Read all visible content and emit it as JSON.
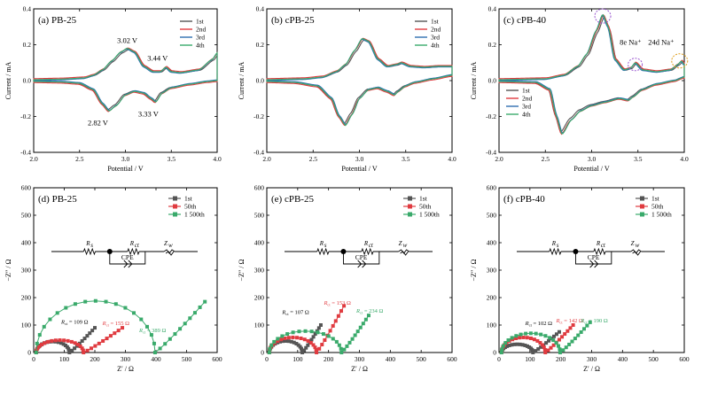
{
  "colors": {
    "c1": "#555555",
    "c2": "#e03b40",
    "c3": "#2f6fb0",
    "c4": "#3aaa6b",
    "purple": "#9b59d0",
    "orange": "#e0a020"
  },
  "chart_data": [
    {
      "type": "line",
      "panel": "a",
      "title": "(a) PB-25",
      "xlabel": "Potential / V",
      "ylabel": "Current / mA",
      "xlim": [
        2.0,
        4.0
      ],
      "ylim": [
        -0.4,
        0.4
      ],
      "xticks": [
        2.0,
        2.5,
        3.0,
        3.5,
        4.0
      ],
      "yticks": [
        -0.4,
        -0.2,
        0.0,
        0.2,
        0.4
      ],
      "series": [
        {
          "name": "1st",
          "color_key": "c1"
        },
        {
          "name": "2nd",
          "color_key": "c2"
        },
        {
          "name": "3rd",
          "color_key": "c3"
        },
        {
          "name": "4th",
          "color_key": "c4"
        }
      ],
      "anodic_peaks": [
        [
          2.0,
          0.005
        ],
        [
          2.3,
          0.008
        ],
        [
          2.55,
          0.015
        ],
        [
          2.65,
          0.03
        ],
        [
          2.75,
          0.06
        ],
        [
          2.85,
          0.11
        ],
        [
          2.95,
          0.16
        ],
        [
          3.02,
          0.18
        ],
        [
          3.1,
          0.16
        ],
        [
          3.2,
          0.08
        ],
        [
          3.3,
          0.05
        ],
        [
          3.38,
          0.05
        ],
        [
          3.44,
          0.075
        ],
        [
          3.5,
          0.05
        ],
        [
          3.6,
          0.045
        ],
        [
          3.8,
          0.06
        ],
        [
          3.95,
          0.12
        ],
        [
          4.0,
          0.155
        ]
      ],
      "cathodic_peaks": [
        [
          4.0,
          0.0
        ],
        [
          3.9,
          -0.005
        ],
        [
          3.7,
          -0.02
        ],
        [
          3.5,
          -0.04
        ],
        [
          3.4,
          -0.07
        ],
        [
          3.33,
          -0.12
        ],
        [
          3.28,
          -0.1
        ],
        [
          3.2,
          -0.07
        ],
        [
          3.1,
          -0.06
        ],
        [
          3.0,
          -0.08
        ],
        [
          2.9,
          -0.14
        ],
        [
          2.82,
          -0.17
        ],
        [
          2.75,
          -0.13
        ],
        [
          2.65,
          -0.05
        ],
        [
          2.5,
          -0.015
        ],
        [
          2.3,
          -0.008
        ],
        [
          2.0,
          -0.005
        ]
      ],
      "annotations": [
        {
          "text": "3.02 V",
          "x": 3.02,
          "y": 0.21
        },
        {
          "text": "3.44 V",
          "x": 3.35,
          "y": 0.11
        },
        {
          "text": "2.82 V",
          "x": 2.7,
          "y": -0.25
        },
        {
          "text": "3.33 V",
          "x": 3.25,
          "y": -0.2
        }
      ]
    },
    {
      "type": "line",
      "panel": "b",
      "title": "(b) cPB-25",
      "xlabel": "Potential / V",
      "ylabel": "Current / mA",
      "xlim": [
        2.0,
        4.0
      ],
      "ylim": [
        -0.4,
        0.4
      ],
      "xticks": [
        2.0,
        2.5,
        3.0,
        3.5,
        4.0
      ],
      "yticks": [
        -0.4,
        -0.2,
        0.0,
        0.2,
        0.4
      ],
      "series": [
        {
          "name": "1st",
          "color_key": "c1"
        },
        {
          "name": "2nd",
          "color_key": "c2"
        },
        {
          "name": "3rd",
          "color_key": "c3"
        },
        {
          "name": "4th",
          "color_key": "c4"
        }
      ],
      "anodic_peaks": [
        [
          2.0,
          0.005
        ],
        [
          2.4,
          0.01
        ],
        [
          2.6,
          0.02
        ],
        [
          2.75,
          0.05
        ],
        [
          2.85,
          0.09
        ],
        [
          2.95,
          0.17
        ],
        [
          3.03,
          0.235
        ],
        [
          3.1,
          0.22
        ],
        [
          3.2,
          0.12
        ],
        [
          3.3,
          0.08
        ],
        [
          3.4,
          0.09
        ],
        [
          3.45,
          0.1
        ],
        [
          3.55,
          0.08
        ],
        [
          3.7,
          0.075
        ],
        [
          3.85,
          0.08
        ],
        [
          4.0,
          0.08
        ]
      ],
      "cathodic_peaks": [
        [
          4.0,
          0.03
        ],
        [
          3.8,
          0.01
        ],
        [
          3.6,
          -0.01
        ],
        [
          3.5,
          -0.03
        ],
        [
          3.42,
          -0.06
        ],
        [
          3.38,
          -0.08
        ],
        [
          3.3,
          -0.06
        ],
        [
          3.2,
          -0.04
        ],
        [
          3.1,
          -0.05
        ],
        [
          3.0,
          -0.1
        ],
        [
          2.92,
          -0.19
        ],
        [
          2.85,
          -0.25
        ],
        [
          2.78,
          -0.2
        ],
        [
          2.7,
          -0.1
        ],
        [
          2.55,
          -0.03
        ],
        [
          2.3,
          -0.01
        ],
        [
          2.0,
          -0.005
        ]
      ],
      "annotations": []
    },
    {
      "type": "line",
      "panel": "c",
      "title": "(c) cPB-40",
      "xlabel": "Potential / V",
      "ylabel": "Current / mA",
      "xlim": [
        2.0,
        4.0
      ],
      "ylim": [
        -0.4,
        0.4
      ],
      "xticks": [
        2.0,
        2.5,
        3.0,
        3.5,
        4.0
      ],
      "yticks": [
        -0.4,
        -0.2,
        0.0,
        0.2,
        0.4
      ],
      "series": [
        {
          "name": "1st",
          "color_key": "c1"
        },
        {
          "name": "2nd",
          "color_key": "c2"
        },
        {
          "name": "3rd",
          "color_key": "c3"
        },
        {
          "name": "4th",
          "color_key": "c4"
        }
      ],
      "anodic_peaks": [
        [
          2.0,
          0.005
        ],
        [
          2.5,
          0.01
        ],
        [
          2.7,
          0.03
        ],
        [
          2.85,
          0.08
        ],
        [
          2.95,
          0.15
        ],
        [
          3.05,
          0.28
        ],
        [
          3.12,
          0.37
        ],
        [
          3.18,
          0.3
        ],
        [
          3.25,
          0.12
        ],
        [
          3.35,
          0.06
        ],
        [
          3.42,
          0.07
        ],
        [
          3.47,
          0.1
        ],
        [
          3.55,
          0.06
        ],
        [
          3.7,
          0.05
        ],
        [
          3.85,
          0.06
        ],
        [
          3.93,
          0.09
        ],
        [
          3.97,
          0.11
        ],
        [
          4.0,
          0.09
        ]
      ],
      "cathodic_peaks": [
        [
          4.0,
          0.02
        ],
        [
          3.9,
          0.0
        ],
        [
          3.7,
          -0.02
        ],
        [
          3.55,
          -0.05
        ],
        [
          3.45,
          -0.09
        ],
        [
          3.4,
          -0.11
        ],
        [
          3.3,
          -0.1
        ],
        [
          3.15,
          -0.12
        ],
        [
          3.0,
          -0.14
        ],
        [
          2.88,
          -0.17
        ],
        [
          2.78,
          -0.22
        ],
        [
          2.68,
          -0.3
        ],
        [
          2.62,
          -0.2
        ],
        [
          2.55,
          -0.05
        ],
        [
          2.4,
          -0.01
        ],
        [
          2.0,
          -0.005
        ]
      ],
      "annotations": [
        {
          "text": "8e Na⁺",
          "x": 3.42,
          "y": 0.2,
          "color_key": "purple"
        },
        {
          "text": "24d Na⁺",
          "x": 3.75,
          "y": 0.2,
          "color_key": "orange"
        }
      ],
      "legend": "bottom-left"
    },
    {
      "type": "scatter",
      "panel": "d",
      "title": "(d) PB-25",
      "xlabel": "Z′ / Ω",
      "ylabel": "−Z″ / Ω",
      "xlim": [
        0,
        600
      ],
      "ylim": [
        0,
        600
      ],
      "xticks": [
        0,
        100,
        200,
        300,
        400,
        500,
        600
      ],
      "yticks": [
        0,
        100,
        200,
        300,
        400,
        500,
        600
      ],
      "series": [
        {
          "name": "1st",
          "color_key": "c1",
          "Rct": 109,
          "hi": 40,
          "tailx": 200,
          "taily": 90
        },
        {
          "name": "50th",
          "color_key": "c2",
          "Rct": 155,
          "hi": 45,
          "tailx": 290,
          "taily": 90
        },
        {
          "name": "1 500th",
          "color_key": "c4",
          "Rct": 389,
          "hi": 188,
          "tailx": 560,
          "taily": 185
        }
      ],
      "annotations": [
        {
          "text": "R",
          "sub": "ct",
          "value": " = 109 Ω",
          "x": 90,
          "y": 105,
          "color_key": "c1"
        },
        {
          "text": "R",
          "sub": "ct",
          "value": " = 155 Ω",
          "x": 225,
          "y": 100,
          "color_key": "c2"
        },
        {
          "text": "R",
          "sub": "ct",
          "value": " = 389 Ω",
          "x": 345,
          "y": 75,
          "color_key": "c4"
        }
      ],
      "circuit": {
        "rs": "R",
        "rs_sub": "s",
        "rct": "R",
        "rct_sub": "ct",
        "zw": "Z",
        "zw_sub": "w",
        "cpe": "CPE"
      }
    },
    {
      "type": "scatter",
      "panel": "e",
      "title": "(e) cPB-25",
      "xlabel": "Z′ / Ω",
      "ylabel": "−Z″ / Ω",
      "xlim": [
        0,
        600
      ],
      "ylim": [
        0,
        600
      ],
      "xticks": [
        0,
        100,
        200,
        300,
        400,
        500,
        600
      ],
      "yticks": [
        0,
        100,
        200,
        300,
        400,
        500,
        600
      ],
      "series": [
        {
          "name": "1st",
          "color_key": "c1",
          "Rct": 107,
          "hi": 42,
          "tailx": 175,
          "taily": 100
        },
        {
          "name": "50th",
          "color_key": "c2",
          "Rct": 153,
          "hi": 55,
          "tailx": 250,
          "taily": 170
        },
        {
          "name": "1 500th",
          "color_key": "c4",
          "Rct": 234,
          "hi": 78,
          "tailx": 330,
          "taily": 135
        }
      ],
      "annotations": [
        {
          "text": "R",
          "sub": "ct",
          "value": " = 107 Ω",
          "x": 50,
          "y": 140,
          "color_key": "c1"
        },
        {
          "text": "R",
          "sub": "ct",
          "value": " = 153 Ω",
          "x": 185,
          "y": 175,
          "color_key": "c2"
        },
        {
          "text": "R",
          "sub": "ct",
          "value": " = 234 Ω",
          "x": 290,
          "y": 145,
          "color_key": "c4"
        }
      ],
      "circuit": {
        "rs": "R",
        "rs_sub": "s",
        "rct": "R",
        "rct_sub": "ct",
        "zw": "Z",
        "zw_sub": "w",
        "cpe": "CPE"
      }
    },
    {
      "type": "scatter",
      "panel": "f",
      "title": "(f) cPB-40",
      "xlabel": "Z′ / Ω",
      "ylabel": "−Z″ / Ω",
      "xlim": [
        0,
        600
      ],
      "ylim": [
        0,
        600
      ],
      "xticks": [
        0,
        100,
        200,
        300,
        400,
        500,
        600
      ],
      "yticks": [
        0,
        100,
        200,
        300,
        400,
        500,
        600
      ],
      "series": [
        {
          "name": "1st",
          "color_key": "c1",
          "Rct": 102,
          "hi": 30,
          "tailx": 195,
          "taily": 75
        },
        {
          "name": "50th",
          "color_key": "c2",
          "Rct": 142,
          "hi": 55,
          "tailx": 240,
          "taily": 100
        },
        {
          "name": "1 500th",
          "color_key": "c4",
          "Rct": 190,
          "hi": 70,
          "tailx": 295,
          "taily": 110
        }
      ],
      "annotations": [
        {
          "text": "R",
          "sub": "ct",
          "value": " = 102 Ω",
          "x": 85,
          "y": 100,
          "color_key": "c1"
        },
        {
          "text": "R",
          "sub": "ct",
          "value": " = 142 Ω",
          "x": 185,
          "y": 110,
          "color_key": "c2"
        },
        {
          "text": "R",
          "sub": "ct",
          "value": " = 190 Ω",
          "x": 265,
          "y": 110,
          "color_key": "c4"
        }
      ],
      "circuit": {
        "rs": "R",
        "rs_sub": "s",
        "rct": "R",
        "rct_sub": "ct",
        "zw": "Z",
        "zw_sub": "w",
        "cpe": "CPE"
      }
    }
  ]
}
